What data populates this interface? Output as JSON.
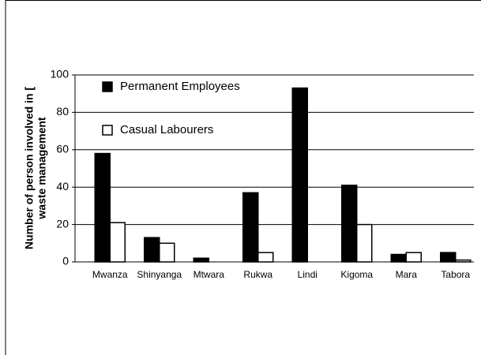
{
  "chart_data": {
    "type": "bar",
    "y_label": [
      "Number of person involved in [",
      "waste management"
    ],
    "categories": [
      "Mwanza",
      "Shinyanga",
      "Mtwara",
      "Rukwa",
      "Lindi",
      "Kigoma",
      "Mara",
      "Tabora"
    ],
    "series": [
      {
        "name": "Permanent Employees",
        "color": "#000000",
        "values": [
          58,
          13,
          2,
          37,
          93,
          41,
          4,
          5
        ]
      },
      {
        "name": "Casual Labourers",
        "color": "#ffffff",
        "values": [
          21,
          10,
          0,
          5,
          0,
          20,
          5,
          1
        ]
      }
    ],
    "ylim": [
      0,
      100
    ],
    "yticks": [
      0,
      20,
      40,
      60,
      80,
      100
    ],
    "grid": true
  }
}
